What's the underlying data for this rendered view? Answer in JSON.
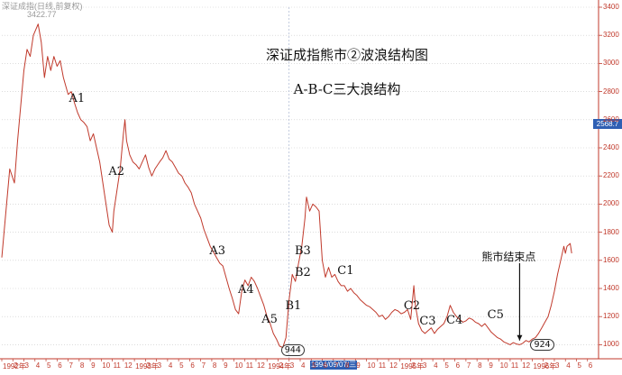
{
  "header": {
    "title": "深证成指(日线,前复权)",
    "subtitle": "3422.77"
  },
  "annotations": {
    "title_line1": "深证成指熊市②波浪结构图",
    "title_line2": "A-B-C三大浪结构",
    "labels": [
      {
        "text": "A1",
        "x": 46,
        "y": 2745
      },
      {
        "text": "A2",
        "x": 71,
        "y": 2230
      },
      {
        "text": "A3",
        "x": 135,
        "y": 1660
      },
      {
        "text": "A4",
        "x": 153,
        "y": 1390
      },
      {
        "text": "A5",
        "x": 168,
        "y": 1175
      },
      {
        "text": "B1",
        "x": 183,
        "y": 1270
      },
      {
        "text": "B2",
        "x": 189,
        "y": 1510
      },
      {
        "text": "B3",
        "x": 189,
        "y": 1660
      },
      {
        "text": "C1",
        "x": 216,
        "y": 1525
      },
      {
        "text": "C2",
        "x": 258,
        "y": 1270
      },
      {
        "text": "C3",
        "x": 268,
        "y": 1160
      },
      {
        "text": "C4",
        "x": 285,
        "y": 1170
      },
      {
        "text": "C5",
        "x": 311,
        "y": 1210
      }
    ],
    "circled": [
      {
        "text": "944",
        "x": 182,
        "y": 965
      },
      {
        "text": "924",
        "x": 340,
        "y": 1000
      }
    ],
    "end_label": "熊市结束点"
  },
  "cursor_date": "1994/09/07/三",
  "last_price": "2568.7",
  "chart_data": {
    "type": "line",
    "title": "深证成指熊市②波浪结构图",
    "subtitle": "A-B-C三大浪结构",
    "xlabel": "",
    "ylabel": "",
    "x_unit": "trading-day index (approx.)",
    "xlim": [
      0,
      378
    ],
    "ylim": [
      900,
      3400
    ],
    "y_ticks": [
      1000,
      1200,
      1400,
      1600,
      1800,
      2000,
      2200,
      2400,
      2600,
      2800,
      3000,
      3200,
      3400
    ],
    "x_tick_labels": [
      "1992年",
      "2",
      "3",
      "4",
      "5",
      "6",
      "7",
      "8",
      "9",
      "10",
      "11",
      "12",
      "1993年",
      "2",
      "3",
      "4",
      "5",
      "6",
      "7",
      "8",
      "9",
      "10",
      "11",
      "12",
      "1994年",
      "2",
      "3",
      "4",
      "5",
      "6",
      "7",
      "8",
      "9",
      "10",
      "11",
      "12",
      "1995年",
      "2",
      "3",
      "4",
      "5",
      "6",
      "7",
      "8",
      "9",
      "10",
      "11",
      "12",
      "1996年",
      "2",
      "3",
      "4",
      "5",
      "6"
    ],
    "grid": true,
    "series": [
      {
        "name": "",
        "color": "#c0392b",
        "points": [
          [
            0,
            1620
          ],
          [
            3,
            2000
          ],
          [
            5,
            2250
          ],
          [
            8,
            2150
          ],
          [
            10,
            2450
          ],
          [
            12,
            2700
          ],
          [
            14,
            2950
          ],
          [
            16,
            3100
          ],
          [
            18,
            3050
          ],
          [
            20,
            3200
          ],
          [
            23,
            3280
          ],
          [
            25,
            3150
          ],
          [
            27,
            2900
          ],
          [
            29,
            3050
          ],
          [
            31,
            2950
          ],
          [
            33,
            3050
          ],
          [
            35,
            2980
          ],
          [
            37,
            3020
          ],
          [
            39,
            2900
          ],
          [
            42,
            2780
          ],
          [
            44,
            2800
          ],
          [
            46,
            2720
          ],
          [
            48,
            2650
          ],
          [
            50,
            2600
          ],
          [
            52,
            2580
          ],
          [
            54,
            2550
          ],
          [
            56,
            2450
          ],
          [
            58,
            2500
          ],
          [
            60,
            2400
          ],
          [
            62,
            2300
          ],
          [
            64,
            2150
          ],
          [
            66,
            2000
          ],
          [
            68,
            1850
          ],
          [
            70,
            1800
          ],
          [
            71,
            1950
          ],
          [
            73,
            2100
          ],
          [
            75,
            2250
          ],
          [
            77,
            2500
          ],
          [
            78,
            2600
          ],
          [
            79,
            2450
          ],
          [
            81,
            2350
          ],
          [
            83,
            2300
          ],
          [
            85,
            2280
          ],
          [
            87,
            2250
          ],
          [
            89,
            2300
          ],
          [
            91,
            2350
          ],
          [
            93,
            2260
          ],
          [
            95,
            2200
          ],
          [
            97,
            2250
          ],
          [
            100,
            2300
          ],
          [
            102,
            2330
          ],
          [
            104,
            2380
          ],
          [
            106,
            2320
          ],
          [
            108,
            2300
          ],
          [
            110,
            2260
          ],
          [
            112,
            2220
          ],
          [
            114,
            2200
          ],
          [
            116,
            2150
          ],
          [
            118,
            2120
          ],
          [
            120,
            2080
          ],
          [
            122,
            2000
          ],
          [
            124,
            1950
          ],
          [
            126,
            1900
          ],
          [
            128,
            1820
          ],
          [
            130,
            1760
          ],
          [
            132,
            1700
          ],
          [
            134,
            1660
          ],
          [
            136,
            1620
          ],
          [
            138,
            1580
          ],
          [
            140,
            1560
          ],
          [
            142,
            1480
          ],
          [
            144,
            1400
          ],
          [
            146,
            1330
          ],
          [
            148,
            1250
          ],
          [
            150,
            1220
          ],
          [
            152,
            1380
          ],
          [
            154,
            1460
          ],
          [
            156,
            1420
          ],
          [
            158,
            1480
          ],
          [
            160,
            1450
          ],
          [
            162,
            1400
          ],
          [
            164,
            1340
          ],
          [
            166,
            1280
          ],
          [
            168,
            1200
          ],
          [
            170,
            1150
          ],
          [
            172,
            1080
          ],
          [
            174,
            1040
          ],
          [
            176,
            990
          ],
          [
            178,
            980
          ],
          [
            180,
            1050
          ],
          [
            182,
            1320
          ],
          [
            184,
            1500
          ],
          [
            186,
            1450
          ],
          [
            188,
            1580
          ],
          [
            190,
            1700
          ],
          [
            192,
            1900
          ],
          [
            193,
            2050
          ],
          [
            195,
            1950
          ],
          [
            197,
            2000
          ],
          [
            199,
            1980
          ],
          [
            201,
            1950
          ],
          [
            203,
            1600
          ],
          [
            205,
            1480
          ],
          [
            207,
            1550
          ],
          [
            209,
            1480
          ],
          [
            211,
            1500
          ],
          [
            213,
            1450
          ],
          [
            215,
            1420
          ],
          [
            217,
            1420
          ],
          [
            219,
            1380
          ],
          [
            221,
            1400
          ],
          [
            223,
            1370
          ],
          [
            225,
            1350
          ],
          [
            227,
            1320
          ],
          [
            229,
            1300
          ],
          [
            231,
            1280
          ],
          [
            233,
            1270
          ],
          [
            235,
            1250
          ],
          [
            237,
            1230
          ],
          [
            239,
            1200
          ],
          [
            241,
            1210
          ],
          [
            243,
            1180
          ],
          [
            245,
            1200
          ],
          [
            247,
            1230
          ],
          [
            249,
            1250
          ],
          [
            251,
            1240
          ],
          [
            253,
            1220
          ],
          [
            255,
            1230
          ],
          [
            257,
            1250
          ],
          [
            259,
            1180
          ],
          [
            261,
            1420
          ],
          [
            262,
            1280
          ],
          [
            264,
            1150
          ],
          [
            266,
            1100
          ],
          [
            268,
            1080
          ],
          [
            270,
            1100
          ],
          [
            272,
            1120
          ],
          [
            274,
            1080
          ],
          [
            276,
            1110
          ],
          [
            278,
            1130
          ],
          [
            280,
            1150
          ],
          [
            282,
            1200
          ],
          [
            284,
            1280
          ],
          [
            286,
            1230
          ],
          [
            288,
            1200
          ],
          [
            290,
            1180
          ],
          [
            292,
            1160
          ],
          [
            294,
            1170
          ],
          [
            296,
            1190
          ],
          [
            298,
            1180
          ],
          [
            300,
            1160
          ],
          [
            302,
            1150
          ],
          [
            304,
            1130
          ],
          [
            306,
            1150
          ],
          [
            308,
            1120
          ],
          [
            310,
            1090
          ],
          [
            312,
            1070
          ],
          [
            314,
            1050
          ],
          [
            316,
            1040
          ],
          [
            318,
            1020
          ],
          [
            320,
            1010
          ],
          [
            322,
            1000
          ],
          [
            324,
            1015
          ],
          [
            326,
            1005
          ],
          [
            328,
            1000
          ],
          [
            330,
            1010
          ],
          [
            332,
            1030
          ],
          [
            334,
            1020
          ],
          [
            336,
            1040
          ],
          [
            338,
            1050
          ],
          [
            340,
            1080
          ],
          [
            342,
            1120
          ],
          [
            344,
            1160
          ],
          [
            346,
            1200
          ],
          [
            348,
            1280
          ],
          [
            350,
            1380
          ],
          [
            352,
            1500
          ],
          [
            354,
            1600
          ],
          [
            356,
            1700
          ],
          [
            357,
            1650
          ],
          [
            358,
            1700
          ],
          [
            360,
            1720
          ],
          [
            361,
            1650
          ]
        ]
      }
    ]
  }
}
